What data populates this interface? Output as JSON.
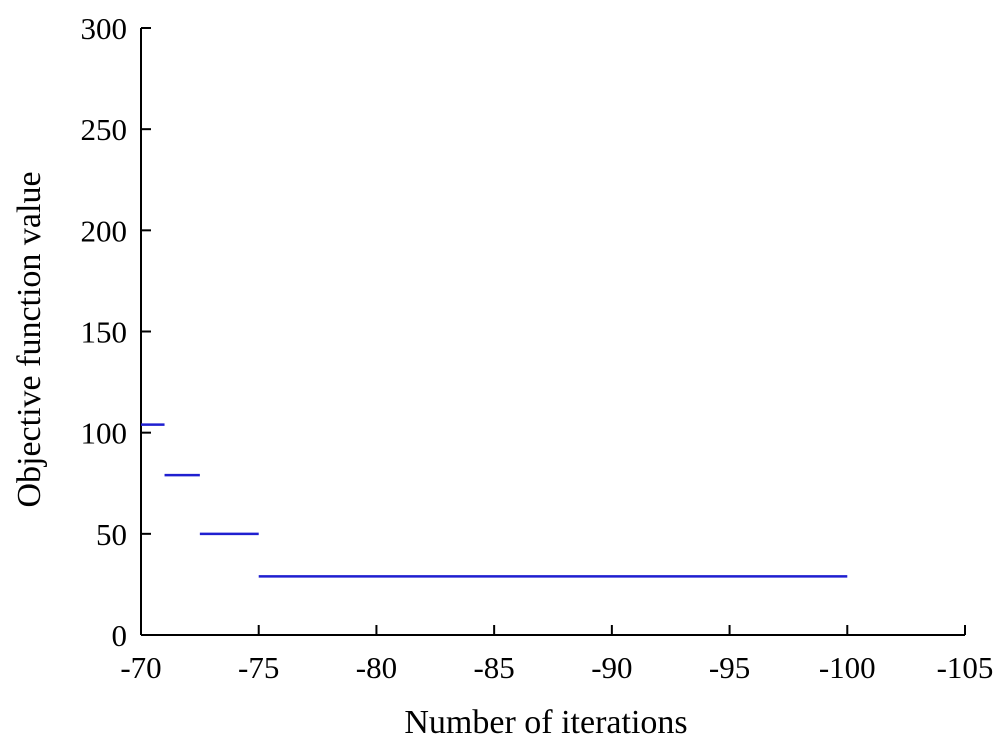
{
  "chart_data": {
    "type": "line",
    "xlabel": "Number of iterations",
    "ylabel": "Objective function value",
    "xlim": [
      -70,
      -105
    ],
    "ylim": [
      0,
      300
    ],
    "x_ticks": [
      "-70",
      "-75",
      "-80",
      "-85",
      "-90",
      "-95",
      "-100",
      "-105"
    ],
    "y_ticks": [
      "0",
      "50",
      "100",
      "150",
      "200",
      "250",
      "300"
    ],
    "grid": false,
    "line_color": "#1f1fd0",
    "segments": [
      {
        "x_start": -70,
        "x_end": -71,
        "y": 104
      },
      {
        "x_start": -71,
        "x_end": -72.5,
        "y": 79
      },
      {
        "x_start": -72.5,
        "x_end": -75,
        "y": 50
      },
      {
        "x_start": -75,
        "x_end": -100,
        "y": 29
      }
    ]
  }
}
